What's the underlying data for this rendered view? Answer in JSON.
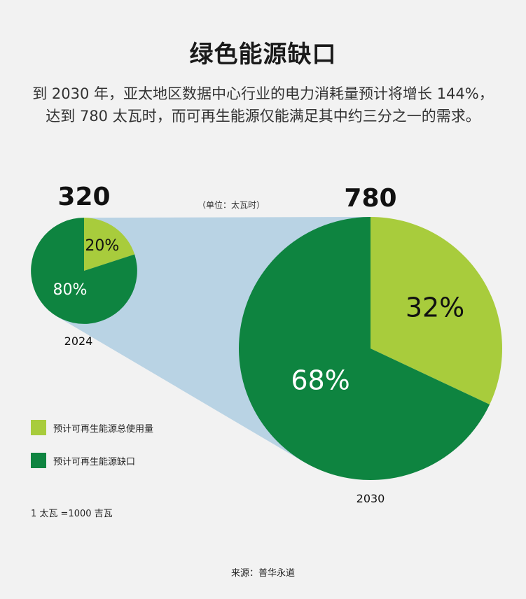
{
  "title": "绿色能源缺口",
  "subtitle": {
    "line1": "到 2030 年，亚太地区数据中心行业的电力消耗量预计将增长 144%，",
    "line2": "达到 780 太瓦时，而可再生能源仅能满足其中约三分之一的需求。"
  },
  "unit_label": "（单位：太瓦时）",
  "colors": {
    "light_green": "#a8cc3c",
    "dark_green": "#0e8440",
    "connector": "#b9d3e4",
    "background": "#f2f2f2"
  },
  "legend": [
    {
      "label": "预计可再生能源总使用量",
      "color": "#a8cc3c"
    },
    {
      "label": "预计可再生能源缺口",
      "color": "#0e8440"
    }
  ],
  "note": "1 太瓦 =1000 吉瓦",
  "source": "来源：普华永道",
  "chart_data": [
    {
      "type": "pie",
      "year": "2024",
      "total": 320,
      "total_label": "320",
      "slices": [
        {
          "name": "预计可再生能源总使用量",
          "value": 20,
          "label": "20%"
        },
        {
          "name": "预计可再生能源缺口",
          "value": 80,
          "label": "80%"
        }
      ]
    },
    {
      "type": "pie",
      "year": "2030",
      "total": 780,
      "total_label": "780",
      "slices": [
        {
          "name": "预计可再生能源总使用量",
          "value": 32,
          "label": "32%"
        },
        {
          "name": "预计可再生能源缺口",
          "value": 68,
          "label": "68%"
        }
      ]
    }
  ]
}
